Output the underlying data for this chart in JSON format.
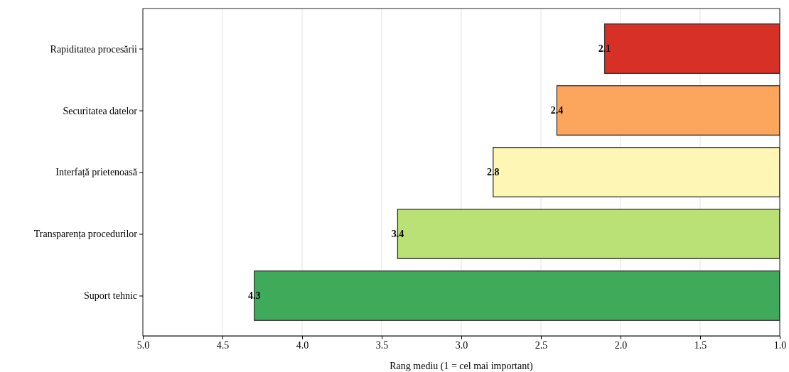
{
  "chart_data": {
    "type": "bar",
    "orientation": "horizontal",
    "categories": [
      "Rapiditatea procesării",
      "Securitatea datelor",
      "Interfață prietenoasă",
      "Transparența procedurilor",
      "Suport tehnic"
    ],
    "values": [
      2.1,
      2.4,
      2.8,
      3.4,
      4.3
    ],
    "colors": [
      "#d73027",
      "#fca55d",
      "#fef6b5",
      "#b9e176",
      "#3faa59"
    ],
    "xlabel": "Rang mediu (1 = cel mai important)",
    "xlim": [
      5,
      1
    ],
    "xticks": [
      {
        "value": 5,
        "label": "5.0"
      },
      {
        "value": 4.5,
        "label": "4.5"
      },
      {
        "value": 4,
        "label": "4.0"
      },
      {
        "value": 3.5,
        "label": "3.5"
      },
      {
        "value": 3,
        "label": "3.0"
      },
      {
        "value": 2.5,
        "label": "2.5"
      },
      {
        "value": 2,
        "label": "2.0"
      },
      {
        "value": 1.5,
        "label": "1.5"
      },
      {
        "value": 1,
        "label": "1.0"
      }
    ],
    "grid": "x",
    "data_labels": true
  }
}
